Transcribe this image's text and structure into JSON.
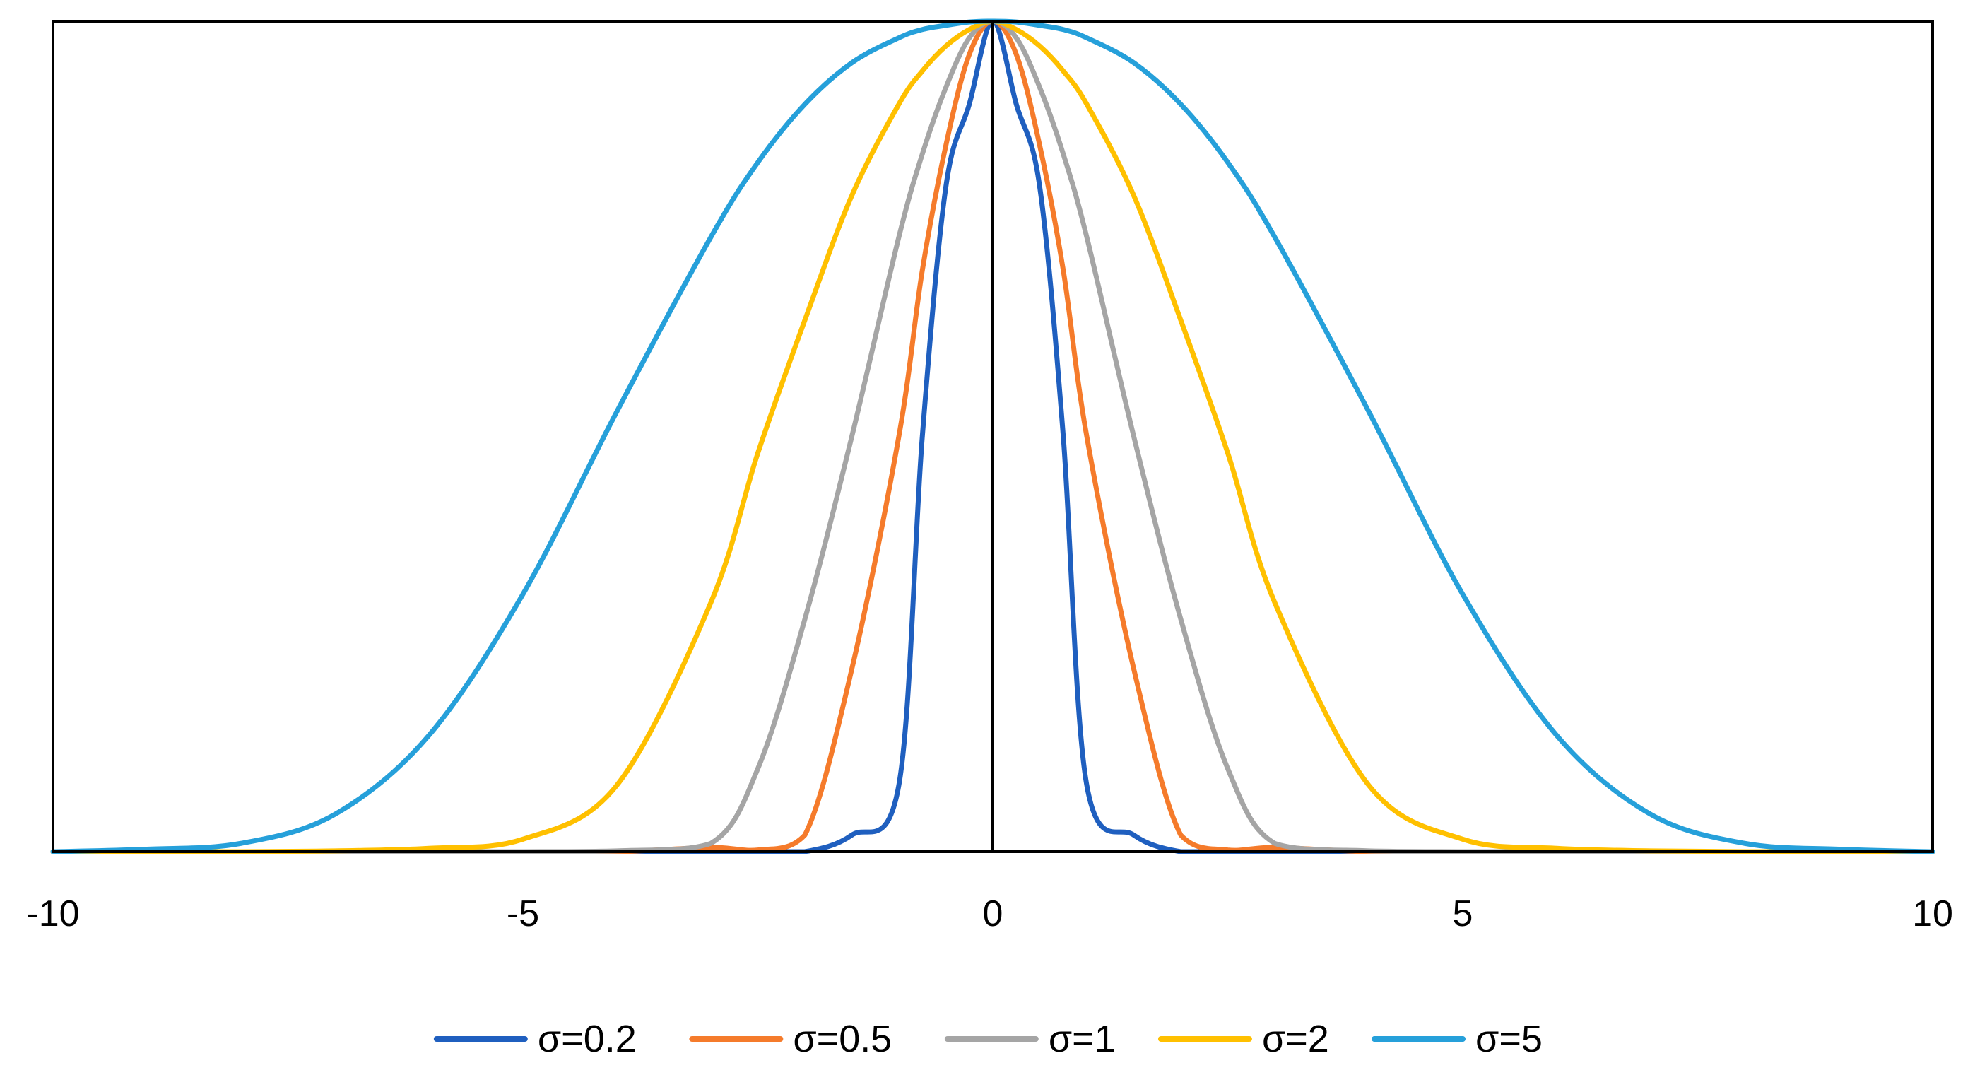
{
  "chart_data": {
    "type": "line",
    "title": "",
    "xlabel": "",
    "ylabel": "",
    "xlim": [
      -10,
      10
    ],
    "ylim": [
      0,
      1
    ],
    "x_ticks": [
      -10,
      -5,
      0,
      5,
      10
    ],
    "x_tick_labels": [
      "-10",
      "-5",
      "0",
      "5",
      "10"
    ],
    "y_ticks_shown": false,
    "grid": false,
    "legend_position": "bottom",
    "x": [
      -10,
      -9,
      -8,
      -7,
      -6,
      -5,
      -4,
      -3,
      -2.5,
      -2,
      -1.5,
      -1,
      -0.75,
      -0.5,
      -0.25,
      0,
      0.25,
      0.5,
      0.75,
      1,
      1.5,
      2,
      2.5,
      3,
      4,
      5,
      6,
      7,
      8,
      9,
      10
    ],
    "series": [
      {
        "name": "σ=0.2",
        "color": "#1f5fbf",
        "values": [
          0,
          0,
          0,
          0,
          0,
          0,
          0,
          0,
          0,
          0,
          0.02,
          0.08,
          0.5,
          0.8,
          0.9,
          1,
          0.9,
          0.8,
          0.5,
          0.08,
          0.02,
          0,
          0,
          0,
          0,
          0,
          0,
          0,
          0,
          0,
          0
        ]
      },
      {
        "name": "σ=0.5",
        "color": "#f57b2b",
        "values": [
          0,
          0,
          0,
          0,
          0,
          0,
          0,
          0.005,
          0.002,
          0.02,
          0.22,
          0.5,
          0.7,
          0.85,
          0.96,
          1,
          0.96,
          0.85,
          0.7,
          0.5,
          0.22,
          0.02,
          0.002,
          0.005,
          0,
          0,
          0,
          0,
          0,
          0,
          0
        ]
      },
      {
        "name": "σ=1",
        "color": "#a5a5a5",
        "values": [
          0,
          0,
          0,
          0,
          0,
          0,
          0.001,
          0.01,
          0.1,
          0.28,
          0.5,
          0.74,
          0.84,
          0.92,
          0.98,
          1,
          0.98,
          0.92,
          0.84,
          0.74,
          0.5,
          0.28,
          0.1,
          0.01,
          0.001,
          0,
          0,
          0,
          0,
          0,
          0
        ]
      },
      {
        "name": "σ=2",
        "color": "#ffc000",
        "values": [
          0,
          0,
          0,
          0.001,
          0.004,
          0.015,
          0.08,
          0.3,
          0.48,
          0.64,
          0.79,
          0.9,
          0.94,
          0.97,
          0.99,
          1,
          0.99,
          0.97,
          0.94,
          0.9,
          0.79,
          0.64,
          0.48,
          0.3,
          0.08,
          0.015,
          0.004,
          0.001,
          0,
          0,
          0
        ]
      },
      {
        "name": "σ=5",
        "color": "#26a0da",
        "values": [
          0,
          0.003,
          0.01,
          0.045,
          0.14,
          0.31,
          0.53,
          0.74,
          0.83,
          0.9,
          0.95,
          0.98,
          0.99,
          0.995,
          0.999,
          1,
          0.999,
          0.995,
          0.99,
          0.98,
          0.95,
          0.9,
          0.83,
          0.74,
          0.53,
          0.31,
          0.14,
          0.045,
          0.01,
          0.003,
          0
        ]
      }
    ]
  }
}
